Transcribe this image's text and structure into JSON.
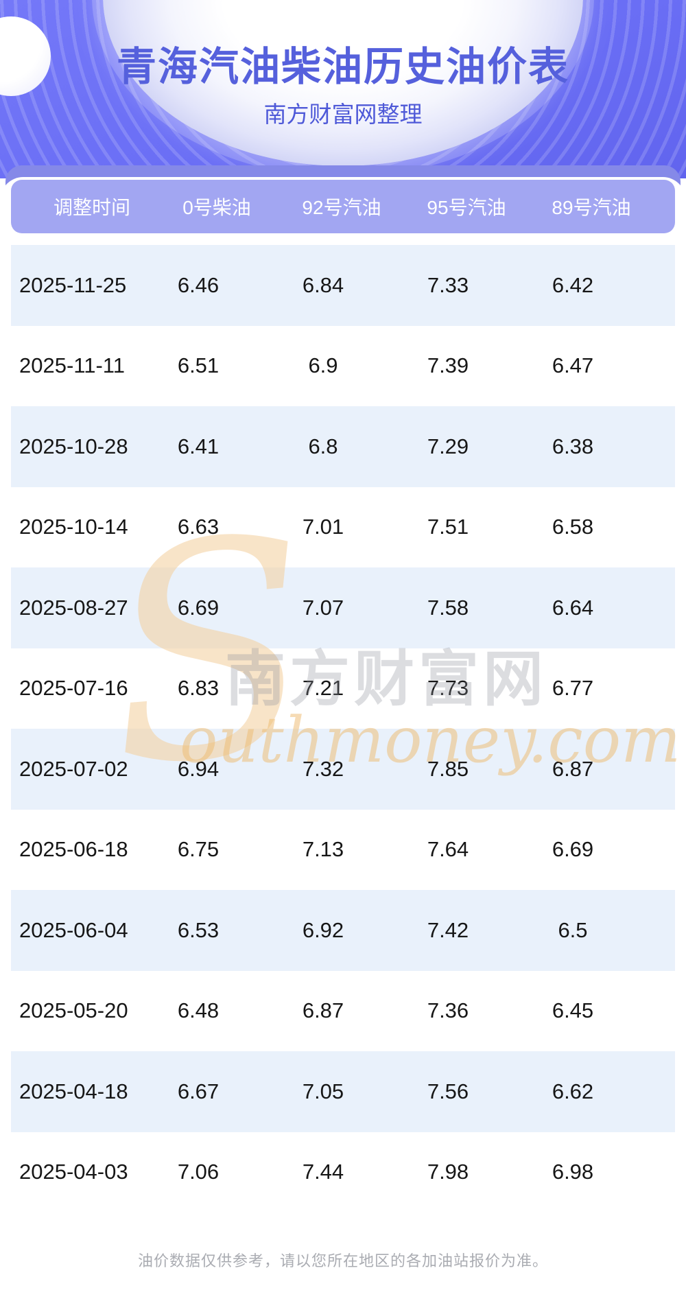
{
  "header": {
    "title": "青海汽油柴油历史油价表",
    "subtitle": "南方财富网整理"
  },
  "footer": {
    "note": "油价数据仅供参考，请以您所在地区的各加油站报价为准。"
  },
  "watermark": {
    "logo_letter": "S",
    "site_name_cn": "南方财富网",
    "site_name_en": "outhmoney.com"
  },
  "colors": {
    "hero_purple": "#6a6ef5",
    "hero_stripe": "#7f83f7",
    "back_band": "#8589e8",
    "header_band": "#a2a6f2",
    "row_alt_blue": "#e9f1fb",
    "title_text": "#5560dc",
    "subtitle_text": "#4e59d8",
    "cell_text": "#161616",
    "header_text": "#ffffff",
    "footer_text": "#aaacb2",
    "watermark_tan": "#eebc72",
    "watermark_gray": "#8d909c"
  },
  "chart_data": {
    "type": "table",
    "title": "青海汽油柴油历史油价表",
    "columns": [
      "调整时间",
      "0号柴油",
      "92号汽油",
      "95号汽油",
      "89号汽油"
    ],
    "rows": [
      [
        "2025-11-25",
        6.46,
        6.84,
        7.33,
        6.42
      ],
      [
        "2025-11-11",
        6.51,
        6.9,
        7.39,
        6.47
      ],
      [
        "2025-10-28",
        6.41,
        6.8,
        7.29,
        6.38
      ],
      [
        "2025-10-14",
        6.63,
        7.01,
        7.51,
        6.58
      ],
      [
        "2025-08-27",
        6.69,
        7.07,
        7.58,
        6.64
      ],
      [
        "2025-07-16",
        6.83,
        7.21,
        7.73,
        6.77
      ],
      [
        "2025-07-02",
        6.94,
        7.32,
        7.85,
        6.87
      ],
      [
        "2025-06-18",
        6.75,
        7.13,
        7.64,
        6.69
      ],
      [
        "2025-06-04",
        6.53,
        6.92,
        7.42,
        6.5
      ],
      [
        "2025-05-20",
        6.48,
        6.87,
        7.36,
        6.45
      ],
      [
        "2025-04-18",
        6.67,
        7.05,
        7.56,
        6.62
      ],
      [
        "2025-04-03",
        7.06,
        7.44,
        7.98,
        6.98
      ]
    ]
  }
}
